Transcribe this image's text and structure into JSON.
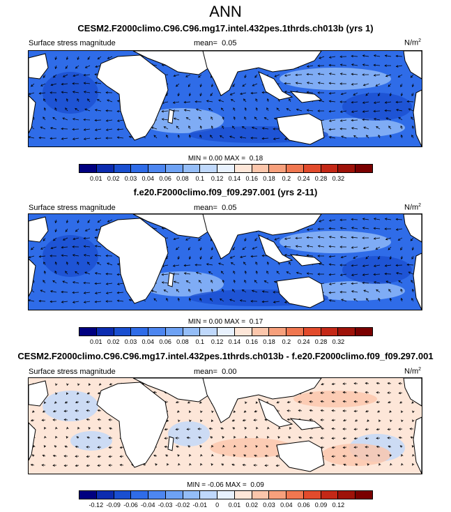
{
  "figure": {
    "title": "ANN"
  },
  "panels": [
    {
      "id": "p1",
      "title": "CESM2.F2000climo.C96.C96.mg17.intel.432pes.1thrds.ch013b (yrs 1)",
      "left_label": "Surface stress magnitude",
      "mean_label": "mean=",
      "mean_value": "0.05",
      "units": "N/m",
      "units_sup": "2",
      "min_label": "MIN =",
      "min_value": "0.00",
      "max_label": "MAX =",
      "max_value": "0.18",
      "style": "magnitude"
    },
    {
      "id": "p2",
      "title": "f.e20.F2000climo.f09_f09.297.001 (yrs 2-11)",
      "left_label": "Surface stress magnitude",
      "mean_label": "mean=",
      "mean_value": "0.05",
      "units": "N/m",
      "units_sup": "2",
      "min_label": "MIN =",
      "min_value": "0.00",
      "max_label": "MAX =",
      "max_value": "0.17",
      "style": "magnitude"
    },
    {
      "id": "p3",
      "title": "CESM2.F2000climo.C96.C96.mg17.intel.432pes.1thrds.ch013b - f.e20.F2000climo.f09_f09.297.001",
      "left_label": "Surface stress magnitude",
      "mean_label": "mean=",
      "mean_value": "0.00",
      "units": "N/m",
      "units_sup": "2",
      "min_label": "MIN =",
      "min_value": "-0.06",
      "max_label": "MAX =",
      "max_value": "0.09",
      "style": "difference"
    }
  ],
  "colorbars": {
    "magnitude": {
      "colors": [
        "#000080",
        "#0c2cb0",
        "#1a4fd0",
        "#2f6ce8",
        "#4d86f0",
        "#6ea2f4",
        "#94bdf7",
        "#bfd8fb",
        "#e8f1fd",
        "#fde6d8",
        "#fbc6ab",
        "#f7a07c",
        "#f07750",
        "#e24b2c",
        "#c42817",
        "#9e1209",
        "#7a0000"
      ],
      "ticks": [
        "0.01",
        "0.02",
        "0.03",
        "0.04",
        "0.06",
        "0.08",
        "0.1",
        "0.12",
        "0.14",
        "0.16",
        "0.18",
        "0.2",
        "0.24",
        "0.28",
        "0.32"
      ]
    },
    "difference": {
      "colors": [
        "#000080",
        "#0c2cb0",
        "#1a4fd0",
        "#2f6ce8",
        "#4d86f0",
        "#6ea2f4",
        "#94bdf7",
        "#bfd8fb",
        "#e8f1fd",
        "#fde6d8",
        "#fbc6ab",
        "#f7a07c",
        "#f07750",
        "#e24b2c",
        "#c42817",
        "#9e1209",
        "#7a0000"
      ],
      "ticks": [
        "-0.12",
        "-0.09",
        "-0.06",
        "-0.04",
        "-0.03",
        "-0.02",
        "-0.01",
        "0",
        "0.01",
        "0.02",
        "0.03",
        "0.04",
        "0.06",
        "0.09",
        "0.12"
      ]
    }
  },
  "colors": {
    "land": "#ffffff",
    "ocean_base": "#2f6ce8",
    "ocean_strong": "#1a4fd0",
    "ocean_weak": "#94bdf7",
    "diff_base": "#fde6d8",
    "diff_neg": "#bfd8fb",
    "diff_pos": "#fbc6ab",
    "arrow": "#000000"
  }
}
